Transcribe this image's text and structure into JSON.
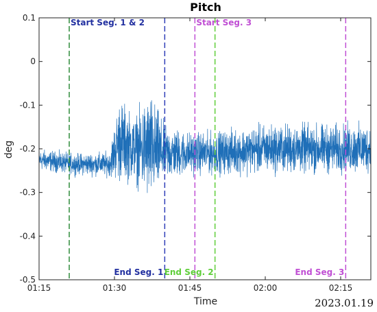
{
  "chart_data": {
    "type": "line",
    "title": "Pitch",
    "xlabel": "Time",
    "ylabel": "deg",
    "date_label": "2023.01.19",
    "x_ticks": [
      "01:15",
      "01:30",
      "01:45",
      "02:00",
      "02:15"
    ],
    "y_ticks": [
      "0.1",
      "0",
      "-0.1",
      "-0.2",
      "-0.3",
      "-0.4",
      "-0.5"
    ],
    "xlim": [
      "01:15",
      "02:21"
    ],
    "ylim": [
      -0.5,
      0.1
    ],
    "grid": false,
    "series": [
      {
        "color": "#1f6fb8",
        "profile": [
          {
            "x": "01:15",
            "center": -0.225,
            "amp": 0.03
          },
          {
            "x": "01:22",
            "center": -0.235,
            "amp": 0.03
          },
          {
            "x": "01:29",
            "center": -0.235,
            "amp": 0.035
          },
          {
            "x": "01:31",
            "center": -0.18,
            "amp": 0.12
          },
          {
            "x": "01:34",
            "center": -0.2,
            "amp": 0.09
          },
          {
            "x": "01:37",
            "center": -0.2,
            "amp": 0.16
          },
          {
            "x": "01:40",
            "center": -0.21,
            "amp": 0.08
          },
          {
            "x": "01:45",
            "center": -0.21,
            "amp": 0.06
          },
          {
            "x": "01:50",
            "center": -0.21,
            "amp": 0.06
          },
          {
            "x": "02:00",
            "center": -0.2,
            "amp": 0.07
          },
          {
            "x": "02:10",
            "center": -0.2,
            "amp": 0.07
          },
          {
            "x": "02:21",
            "center": -0.2,
            "amp": 0.07
          }
        ]
      }
    ],
    "markers": [
      {
        "x": "01:21",
        "label": "Start Seg. 1 & 2",
        "color": "#2e8b3a",
        "text_color": "#2230a0",
        "label_pos": "top"
      },
      {
        "x": "01:40",
        "label": "End Seg. 1",
        "color": "#2f3fb8",
        "text_color": "#2230a0",
        "label_pos": "bottom"
      },
      {
        "x": "01:46",
        "label": "Start Seg. 3",
        "color": "#c04fd4",
        "text_color": "#c04fd4",
        "label_pos": "top"
      },
      {
        "x": "01:50",
        "label": "End Seg. 2",
        "color": "#5fce3a",
        "text_color": "#5fce3a",
        "label_pos": "bottom"
      },
      {
        "x": "02:16",
        "label": "End Seg. 3",
        "color": "#c04fd4",
        "text_color": "#c04fd4",
        "label_pos": "bottom"
      }
    ]
  }
}
